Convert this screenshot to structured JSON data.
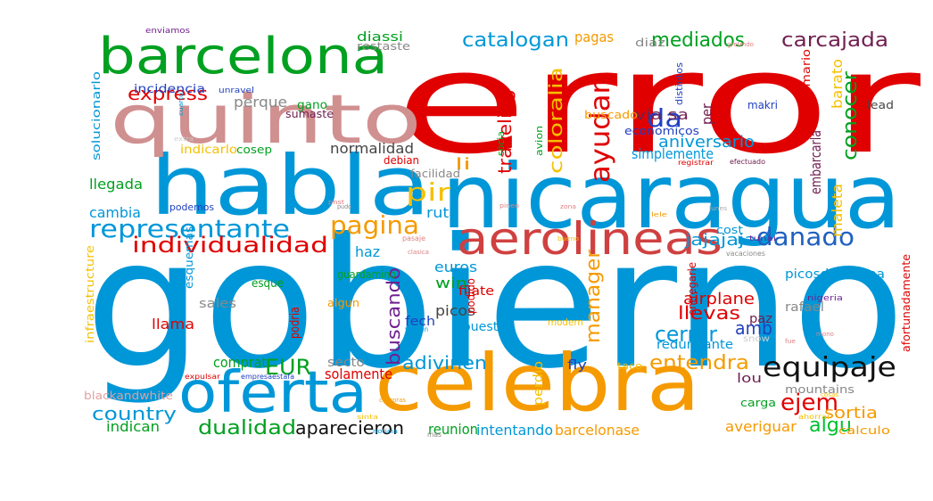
{
  "words": [
    {
      "text": "gobierno",
      "color": "#0097d8"
    },
    {
      "text": "error",
      "color": "#e00000"
    },
    {
      "text": "nicaragua",
      "color": "#0097d8"
    },
    {
      "text": "celebra",
      "color": "#f59a00"
    },
    {
      "text": "habla",
      "color": "#0097d8"
    },
    {
      "text": "quinto",
      "color": "#d09090"
    },
    {
      "text": "barcelona",
      "color": "#00a020"
    },
    {
      "text": "oferta",
      "color": "#0097d8"
    },
    {
      "text": "aerolineas",
      "color": "#d04040"
    },
    {
      "text": "representante",
      "color": "#0097d8"
    },
    {
      "text": "equipaje",
      "color": "#111111"
    },
    {
      "text": "pagina",
      "color": "#f59a00"
    },
    {
      "text": "danado",
      "color": "#2060c0"
    },
    {
      "text": "individualidad",
      "color": "#e00000"
    },
    {
      "text": "ayudan",
      "color": "#e00000"
    },
    {
      "text": "pir",
      "color": "#f5c000"
    },
    {
      "text": "da",
      "color": "#2040c0"
    },
    {
      "text": "catalogan",
      "color": "#0097d8"
    },
    {
      "text": "mediados",
      "color": "#00a020"
    },
    {
      "text": "carcajada",
      "color": "#702050"
    },
    {
      "text": "express",
      "color": "#e00000"
    },
    {
      "text": "traveling",
      "color": "#e00000"
    },
    {
      "text": "coloralia",
      "color": "#f5c000"
    },
    {
      "text": "conocer",
      "color": "#00a020"
    },
    {
      "text": "ejem",
      "color": "#e00000"
    },
    {
      "text": "cerrar",
      "color": "#0097d8"
    },
    {
      "text": "EUR",
      "color": "#00a020"
    },
    {
      "text": "manager",
      "color": "#f59a00"
    },
    {
      "text": "buscando",
      "color": "#702090"
    },
    {
      "text": "entendra",
      "color": "#f59a00"
    },
    {
      "text": "llevas",
      "color": "#e00000"
    },
    {
      "text": "dualidad",
      "color": "#00a020"
    },
    {
      "text": "aparecieron",
      "color": "#111111"
    },
    {
      "text": "country",
      "color": "#0097d8"
    },
    {
      "text": "adivinen",
      "color": "#0097d8"
    },
    {
      "text": "amb",
      "color": "#2040c0"
    },
    {
      "text": "algu",
      "color": "#00c030"
    },
    {
      "text": "sortia",
      "color": "#f59a00"
    },
    {
      "text": "jajajaja",
      "color": "#0097d8"
    },
    {
      "text": "cambia",
      "color": "#0097d8"
    },
    {
      "text": "llegada",
      "color": "#00a020"
    },
    {
      "text": "aniversario",
      "color": "#0097d8"
    },
    {
      "text": "perque",
      "color": "#888888"
    },
    {
      "text": "pagas",
      "color": "#f59a00"
    },
    {
      "text": "embarcarla",
      "color": "#702050"
    },
    {
      "text": "maleta",
      "color": "#f5c000"
    },
    {
      "text": "barato",
      "color": "#f5c000"
    },
    {
      "text": "comprat",
      "color": "#00a020"
    },
    {
      "text": "solamente",
      "color": "#e00000"
    },
    {
      "text": "euros",
      "color": "#0097d8"
    },
    {
      "text": "win",
      "color": "#00a020"
    },
    {
      "text": "picos",
      "color": "#444444"
    },
    {
      "text": "airplane",
      "color": "#e00000"
    },
    {
      "text": "averiguar",
      "color": "#f59a00"
    },
    {
      "text": "barcelonase",
      "color": "#f59a00"
    },
    {
      "text": "intentando",
      "color": "#0097d8"
    },
    {
      "text": "reunion",
      "color": "#00a020"
    },
    {
      "text": "indican",
      "color": "#00a020"
    },
    {
      "text": "llama",
      "color": "#e00000"
    },
    {
      "text": "sales",
      "color": "#888888"
    },
    {
      "text": "normalidad",
      "color": "#444444"
    },
    {
      "text": "ruta",
      "color": "#0097d8"
    },
    {
      "text": "haz",
      "color": "#0097d8"
    },
    {
      "text": "picosdeeuropa",
      "color": "#0097d8"
    },
    {
      "text": "simplemente",
      "color": "#0097d8"
    },
    {
      "text": "via sa",
      "color": "#702050"
    },
    {
      "text": "li",
      "color": "#f59a00"
    },
    {
      "text": "per",
      "color": "#702050"
    },
    {
      "text": "podria",
      "color": "#e00000"
    },
    {
      "text": "fech",
      "color": "#2040c0"
    },
    {
      "text": "apuesta",
      "color": "#0097d8"
    },
    {
      "text": "redundante",
      "color": "#0097d8"
    },
    {
      "text": "paz",
      "color": "#702050"
    },
    {
      "text": "rafael",
      "color": "#888888"
    },
    {
      "text": "lou",
      "color": "#702050"
    },
    {
      "text": "mountains",
      "color": "#888888"
    },
    {
      "text": "perdio",
      "color": "#f5c000"
    },
    {
      "text": "fly",
      "color": "#2040c0"
    },
    {
      "text": "secto",
      "color": "#888888"
    },
    {
      "text": "fijate",
      "color": "#e00000"
    },
    {
      "text": "esque",
      "color": "#00a020"
    },
    {
      "text": "algun",
      "color": "#f59a00"
    },
    {
      "text": "podido",
      "color": "#e00000"
    },
    {
      "text": "modern",
      "color": "#f5c000"
    },
    {
      "text": "entregarle",
      "color": "#e00000"
    },
    {
      "text": "afortunadamente",
      "color": "#e00000"
    },
    {
      "text": "infraestructure",
      "color": "#f5c000"
    },
    {
      "text": "esquemas",
      "color": "#0097d8"
    },
    {
      "text": "solucionarlo",
      "color": "#0097d8"
    },
    {
      "text": "incidencia",
      "color": "#2040c0"
    },
    {
      "text": "indicarlo",
      "color": "#f5c000"
    },
    {
      "text": "diassi",
      "color": "#00a020"
    },
    {
      "text": "restaste",
      "color": "#888888"
    },
    {
      "text": "gano",
      "color": "#00a020"
    },
    {
      "text": "sumaste",
      "color": "#702050"
    },
    {
      "text": "buscado",
      "color": "#f59a00"
    },
    {
      "text": "economicos",
      "color": "#2040c0"
    },
    {
      "text": "makri",
      "color": "#2040c0"
    },
    {
      "text": "lead",
      "color": "#444444"
    },
    {
      "text": "cost",
      "color": "#0097d8"
    },
    {
      "text": "guardamino",
      "color": "#00a020"
    },
    {
      "text": "transformario",
      "color": "#e00000"
    },
    {
      "text": "distintos",
      "color": "#2040c0"
    },
    {
      "text": "avion",
      "color": "#00a020"
    },
    {
      "text": "socia",
      "color": "#00a020"
    },
    {
      "text": "diaz",
      "color": "#888888"
    },
    {
      "text": "debian",
      "color": "#e00000"
    },
    {
      "text": "facilidad",
      "color": "#888888"
    },
    {
      "text": "cosep",
      "color": "#00a020"
    },
    {
      "text": "podemos",
      "color": "#2040c0"
    },
    {
      "text": "blackandwhite",
      "color": "#e0a0a0"
    },
    {
      "text": "carga",
      "color": "#00a020"
    },
    {
      "text": "taco",
      "color": "#f5c000"
    },
    {
      "text": "calculo",
      "color": "#f59a00"
    },
    {
      "text": "nigeria",
      "color": "#702090"
    },
    {
      "text": "enviamos",
      "color": "#702090"
    },
    {
      "text": "unravel",
      "color": "#2040c0"
    },
    {
      "text": "registrar",
      "color": "#e00000"
    },
    {
      "text": "efectuado",
      "color": "#702050"
    },
    {
      "text": "expulsar",
      "color": "#e00000"
    },
    {
      "text": "empresaestafa",
      "color": "#2040c0"
    },
    {
      "text": "mas",
      "color": "#888888"
    },
    {
      "text": "snow",
      "color": "#cccccc"
    },
    {
      "text": "venden",
      "color": "#0097d8"
    },
    {
      "text": "pasaje",
      "color": "#e08080"
    },
    {
      "text": "clasica",
      "color": "#e08080"
    },
    {
      "text": "vacaciones",
      "color": "#888888"
    },
    {
      "text": "tunai",
      "color": "#702090"
    },
    {
      "text": "ahorrar",
      "color": "#f5c000"
    },
    {
      "text": "pudo",
      "color": "#888888"
    },
    {
      "text": "noticia",
      "color": "#0097d8"
    },
    {
      "text": "extra",
      "color": "#cccccc"
    },
    {
      "text": "lele",
      "color": "#f59a00"
    },
    {
      "text": "pnst",
      "color": "#e08080"
    },
    {
      "text": "pineo",
      "color": "#e08080"
    },
    {
      "text": "zona",
      "color": "#e08080"
    },
    {
      "text": "gretmdo",
      "color": "#e08080"
    },
    {
      "text": "lunes",
      "color": "#aaaaaa"
    },
    {
      "text": "compras",
      "color": "#f59a00"
    },
    {
      "text": "sinta",
      "color": "#f5c000"
    },
    {
      "text": "cuarto",
      "color": "#0097d8"
    },
    {
      "text": "fue",
      "color": "#e08080"
    },
    {
      "text": "mono",
      "color": "#e08080"
    },
    {
      "text": "cosas",
      "color": "#f5c000"
    },
    {
      "text": "bueno",
      "color": "#f5c000"
    }
  ]
}
